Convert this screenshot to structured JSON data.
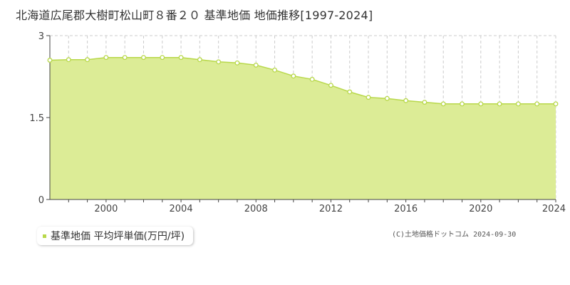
{
  "title": "北海道広尾郡大樹町松山町８番２０ 基準地価 地価推移[1997-2024]",
  "legend": {
    "label": "基準地価 平均坪単価(万円/坪)"
  },
  "credit": "(C)土地価格ドットコム 2024-09-30",
  "colors": {
    "fill": "#dcec96",
    "line": "#b8d84a",
    "marker_stroke": "#b8d84a",
    "marker_fill": "#ffffff",
    "grid": "#cccccc",
    "axis": "#444444"
  },
  "chart_data": {
    "type": "area",
    "title": "北海道広尾郡大樹町松山町８番２０ 基準地価 地価推移[1997-2024]",
    "xlabel": "",
    "ylabel": "",
    "xlim": [
      1997,
      2024
    ],
    "ylim": [
      0,
      3
    ],
    "yticks": [
      0,
      1.5,
      3
    ],
    "ytick_labels": [
      "0",
      "1.5",
      "3"
    ],
    "xticks": [
      2000,
      2004,
      2008,
      2012,
      2016,
      2020,
      2024
    ],
    "xtick_labels": [
      "2000",
      "2004",
      "2008",
      "2012",
      "2016",
      "2020",
      "2024"
    ],
    "grid": true,
    "legend_position": "bottom-left",
    "series": [
      {
        "name": "基準地価 平均坪単価(万円/坪)",
        "x": [
          1997,
          1998,
          1999,
          2000,
          2001,
          2002,
          2003,
          2004,
          2005,
          2006,
          2007,
          2008,
          2009,
          2010,
          2011,
          2012,
          2013,
          2014,
          2015,
          2016,
          2017,
          2018,
          2019,
          2020,
          2021,
          2022,
          2023,
          2024
        ],
        "values": [
          2.55,
          2.56,
          2.56,
          2.6,
          2.6,
          2.6,
          2.6,
          2.6,
          2.56,
          2.52,
          2.5,
          2.46,
          2.37,
          2.26,
          2.2,
          2.09,
          1.97,
          1.87,
          1.85,
          1.81,
          1.78,
          1.75,
          1.75,
          1.75,
          1.75,
          1.75,
          1.75,
          1.75
        ]
      }
    ]
  }
}
